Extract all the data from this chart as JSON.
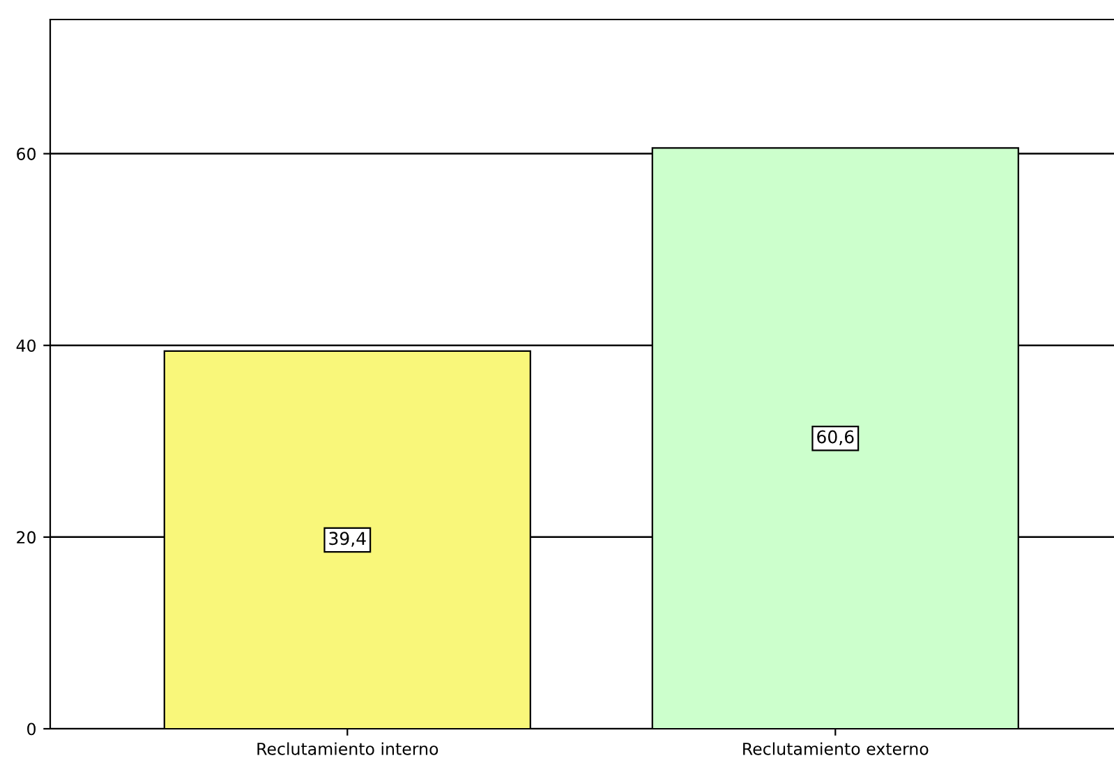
{
  "chart_data": {
    "type": "bar",
    "categories": [
      "Reclutamiento interno",
      "Reclutamiento externo"
    ],
    "values": [
      39.4,
      60.6
    ],
    "colors": [
      "#f9f77a",
      "#ccffcc"
    ],
    "value_labels": [
      "39,4",
      "60,6"
    ],
    "ylim": [
      0,
      74
    ],
    "yticks": [
      0,
      20,
      40,
      60
    ],
    "grid": "y",
    "legend": false
  }
}
